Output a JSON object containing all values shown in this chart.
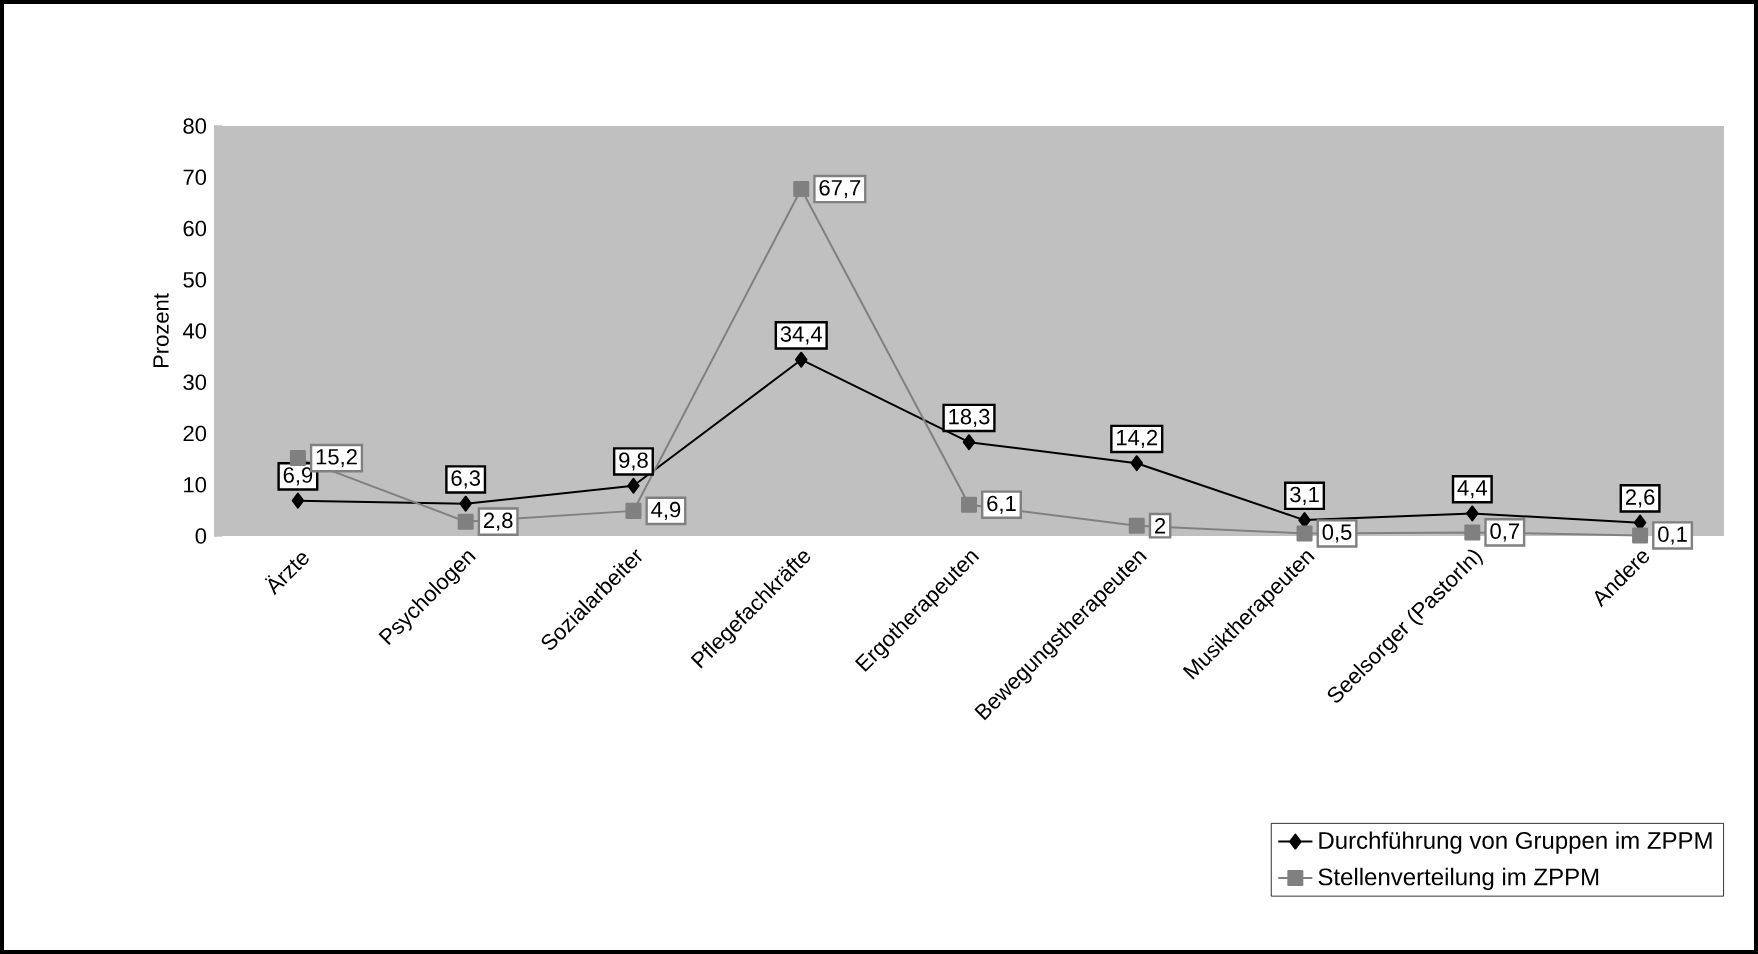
{
  "chart_data": {
    "type": "line",
    "ylabel": "Prozent",
    "categories": [
      "Ärzte",
      "Psychologen",
      "Sozialarbeiter",
      "Pflegefachkräfte",
      "Ergotherapeuten",
      "Bewegungstherapeuten",
      "Musiktherapeuten",
      "Seelsorger (PastorIn)",
      "Andere"
    ],
    "ylim": [
      0,
      80
    ],
    "yticks": [
      0,
      10,
      20,
      30,
      40,
      50,
      60,
      70,
      80
    ],
    "grid": false,
    "legend": "bottom right",
    "line_style": "solid",
    "series": [
      {
        "name": "Durchführung von Gruppen im ZPPM",
        "color": "#000000",
        "marker": "diamond",
        "values": [
          6.9,
          6.3,
          9.8,
          34.4,
          18.3,
          14.2,
          3.1,
          4.4,
          2.6
        ],
        "value_labels": [
          "6,9",
          "6,3",
          "9,8",
          "34,4",
          "18,3",
          "14,2",
          "3,1",
          "4,4",
          "2,6"
        ]
      },
      {
        "name": "Stellenverteilung im ZPPM",
        "color": "#808080",
        "marker": "square",
        "values": [
          15.2,
          2.8,
          4.9,
          67.7,
          6.1,
          2,
          0.5,
          0.7,
          0.1
        ],
        "value_labels": [
          "15,2",
          "2,8",
          "4,9",
          "67,7",
          "6,1",
          "2",
          "0,5",
          "0,7",
          "0,1"
        ]
      }
    ]
  }
}
